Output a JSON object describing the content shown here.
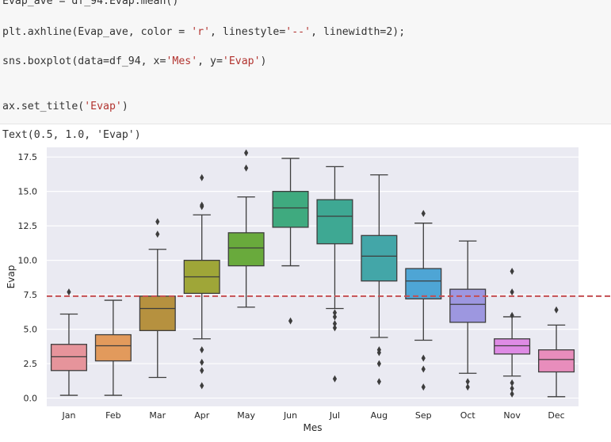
{
  "code_cell": {
    "lines": [
      {
        "parts": [
          {
            "t": "Evap_ave = df_94.Evap.mean()",
            "c": ""
          }
        ]
      },
      {
        "parts": [
          {
            "t": "plt.axhline(Evap_ave, color = ",
            "c": ""
          },
          {
            "t": "'r'",
            "c": "str"
          },
          {
            "t": ", linestyle=",
            "c": ""
          },
          {
            "t": "'--'",
            "c": "str"
          },
          {
            "t": ", linewidth=2);",
            "c": ""
          }
        ]
      },
      {
        "parts": [
          {
            "t": "sns.boxplot(data=df_94, x=",
            "c": ""
          },
          {
            "t": "'Mes'",
            "c": "str"
          },
          {
            "t": ", y=",
            "c": ""
          },
          {
            "t": "'Evap'",
            "c": "str"
          },
          {
            "t": ")",
            "c": ""
          }
        ]
      },
      {
        "parts": [
          {
            "t": "ax.set_title(",
            "c": ""
          },
          {
            "t": "'Evap'",
            "c": "str"
          },
          {
            "t": ")",
            "c": ""
          }
        ]
      }
    ]
  },
  "output": {
    "text": "Text(0.5, 1.0, 'Evap')"
  },
  "chart_data": {
    "type": "boxplot",
    "xlabel": "Mes",
    "ylabel": "Evap",
    "ylim": [
      -0.6,
      18.2
    ],
    "yticks": [
      0.0,
      2.5,
      5.0,
      7.5,
      10.0,
      12.5,
      15.0,
      17.5
    ],
    "ytick_labels": [
      "0.0",
      "2.5",
      "5.0",
      "7.5",
      "10.0",
      "12.5",
      "15.0",
      "17.5"
    ],
    "grid": true,
    "background": "#eaeaf2",
    "mean_line": {
      "value": 7.4,
      "color": "#c44e52",
      "style": "dashed"
    },
    "categories": [
      "Jan",
      "Feb",
      "Mar",
      "Apr",
      "May",
      "Jun",
      "Jul",
      "Aug",
      "Sep",
      "Oct",
      "Nov",
      "Dec"
    ],
    "boxes": [
      {
        "q1": 2.0,
        "median": 3.0,
        "q3": 3.9,
        "whislo": 0.2,
        "whishi": 6.1,
        "fliers": [
          7.7
        ],
        "color": "#e6949b"
      },
      {
        "q1": 2.7,
        "median": 3.8,
        "q3": 4.6,
        "whislo": 0.2,
        "whishi": 7.1,
        "fliers": [],
        "color": "#e29a5c"
      },
      {
        "q1": 4.9,
        "median": 6.5,
        "q3": 7.4,
        "whislo": 1.5,
        "whishi": 10.8,
        "fliers": [
          11.9,
          12.8
        ],
        "color": "#b6913f"
      },
      {
        "q1": 7.6,
        "median": 8.8,
        "q3": 10.0,
        "whislo": 4.3,
        "whishi": 13.3,
        "fliers": [
          14.0,
          13.9,
          16.0,
          3.5,
          2.6,
          2.0,
          0.9
        ],
        "color": "#9fa638"
      },
      {
        "q1": 9.6,
        "median": 10.9,
        "q3": 12.0,
        "whislo": 6.6,
        "whishi": 14.6,
        "fliers": [
          16.7,
          17.8
        ],
        "color": "#69aa3c"
      },
      {
        "q1": 12.4,
        "median": 13.8,
        "q3": 15.0,
        "whislo": 9.6,
        "whishi": 17.4,
        "fliers": [
          5.6
        ],
        "color": "#3faa7f"
      },
      {
        "q1": 11.2,
        "median": 13.2,
        "q3": 14.4,
        "whislo": 6.5,
        "whishi": 16.8,
        "fliers": [
          6.2,
          5.9,
          5.4,
          5.1,
          1.4
        ],
        "color": "#3ea893"
      },
      {
        "q1": 8.5,
        "median": 10.3,
        "q3": 11.8,
        "whislo": 4.4,
        "whishi": 16.2,
        "fliers": [
          3.5,
          3.3,
          2.5,
          1.2
        ],
        "color": "#43a6a8"
      },
      {
        "q1": 7.2,
        "median": 8.5,
        "q3": 9.4,
        "whislo": 4.2,
        "whishi": 12.7,
        "fliers": [
          13.4,
          2.9,
          2.1,
          0.8
        ],
        "color": "#4ea5d5"
      },
      {
        "q1": 5.5,
        "median": 6.8,
        "q3": 7.9,
        "whislo": 1.8,
        "whishi": 11.4,
        "fliers": [
          1.2,
          0.8
        ],
        "color": "#9d97e0"
      },
      {
        "q1": 3.2,
        "median": 3.8,
        "q3": 4.3,
        "whislo": 1.6,
        "whishi": 5.9,
        "fliers": [
          9.2,
          7.7,
          6.0,
          1.1,
          0.7,
          0.3
        ],
        "color": "#de8be5"
      },
      {
        "q1": 1.9,
        "median": 2.8,
        "q3": 3.5,
        "whislo": 0.1,
        "whishi": 5.3,
        "fliers": [
          6.4
        ],
        "color": "#e88dbc"
      }
    ]
  }
}
